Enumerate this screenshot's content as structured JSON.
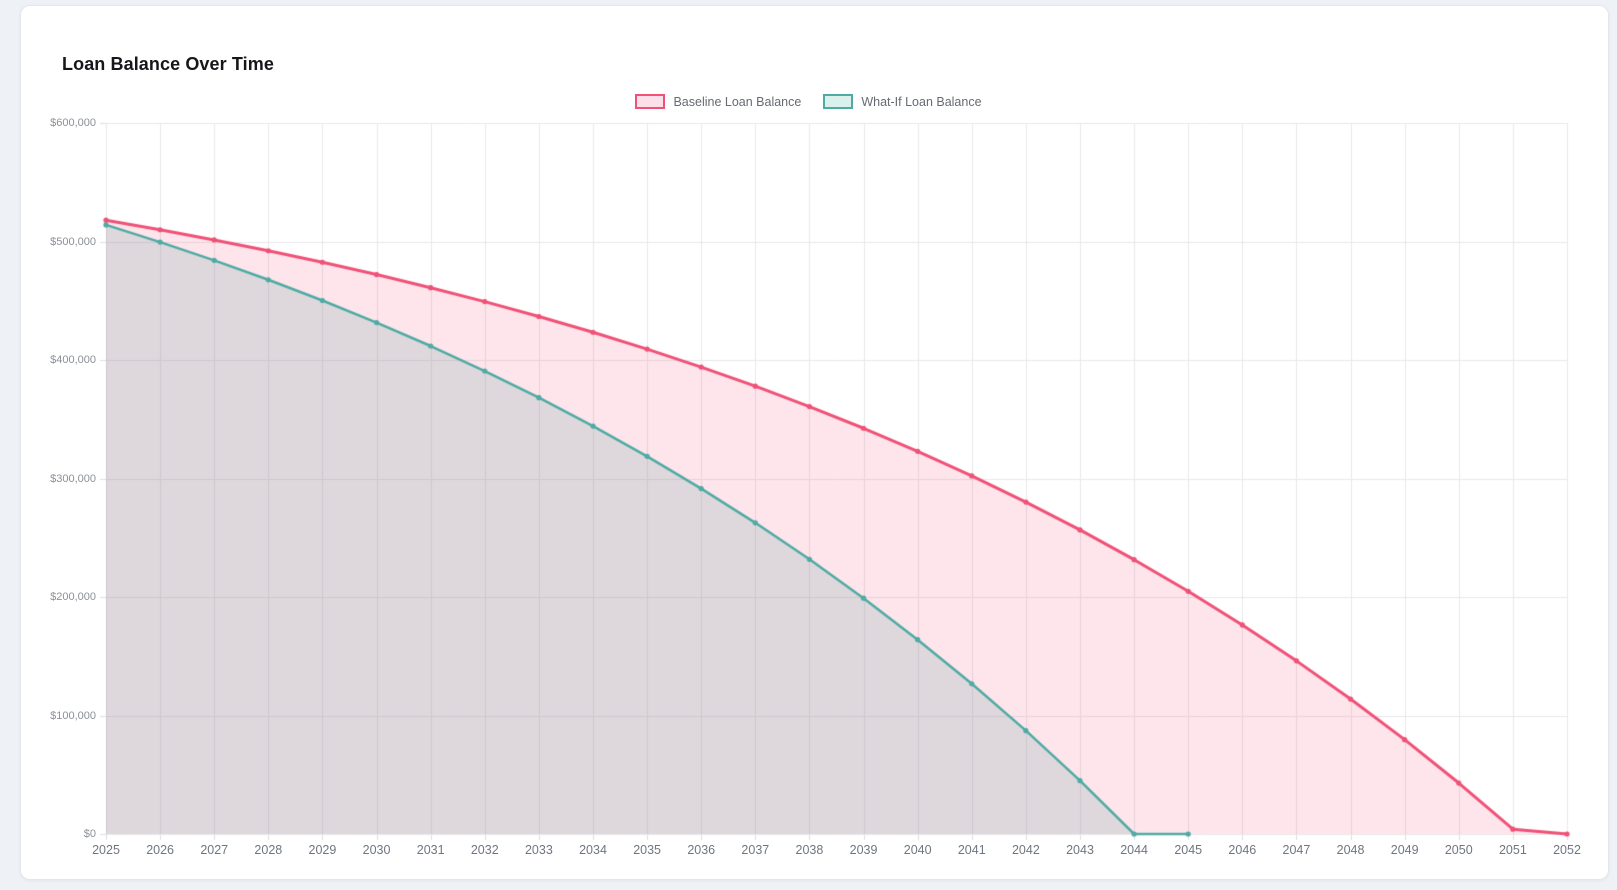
{
  "page": {
    "background": "#eef1f5"
  },
  "card": {
    "background": "#ffffff",
    "border": "#e3e7ed"
  },
  "chart_data": {
    "type": "line",
    "title": "Loan Balance Over Time",
    "xlabel": "",
    "ylabel": "",
    "ylim": [
      0,
      600000
    ],
    "grid": true,
    "legend_position": "top",
    "x_labels": [
      "2025",
      "2026",
      "2027",
      "2028",
      "2029",
      "2030",
      "2031",
      "2032",
      "2033",
      "2034",
      "2035",
      "2036",
      "2037",
      "2038",
      "2039",
      "2040",
      "2041",
      "2042",
      "2043",
      "2044",
      "2045",
      "2046",
      "2047",
      "2048",
      "2049",
      "2050",
      "2051",
      "2052"
    ],
    "y_ticks": [
      {
        "value": 600000,
        "label": "$600,000"
      },
      {
        "value": 500000,
        "label": "$500,000"
      },
      {
        "value": 400000,
        "label": "$400,000"
      },
      {
        "value": 300000,
        "label": "$300,000"
      },
      {
        "value": 200000,
        "label": "$200,000"
      },
      {
        "value": 100000,
        "label": "$100,000"
      },
      {
        "value": 0,
        "label": "$0"
      }
    ],
    "series": [
      {
        "name": "Baseline Loan Balance",
        "color": "#ef5177",
        "fill": "rgba(240,82,121,0.15)",
        "legend_fill": "#fcdfe8",
        "line_width": 3,
        "point_radius": 2.6,
        "values": [
          518000,
          509900,
          501300,
          492200,
          482500,
          472100,
          461000,
          449300,
          436700,
          423400,
          409200,
          394000,
          377900,
          360700,
          342400,
          322900,
          302200,
          280100,
          256600,
          231500,
          204800,
          176400,
          146100,
          113900,
          79600,
          43000,
          4100,
          0
        ]
      },
      {
        "name": "What-If Loan Balance",
        "color": "#4faaa3",
        "fill": "rgba(110,170,165,0.22)",
        "legend_fill": "#daf0ec",
        "line_width": 2.5,
        "point_radius": 2.6,
        "values": [
          514000,
          499500,
          484100,
          467700,
          450200,
          431600,
          411800,
          390700,
          368200,
          344200,
          318700,
          291500,
          262600,
          231800,
          199000,
          164000,
          126800,
          87200,
          45000,
          0,
          0,
          null,
          null,
          null,
          null,
          null,
          null,
          null
        ]
      }
    ],
    "axis": {
      "grid_color": "#e7e8ea",
      "tick_color": "#dcdee2",
      "y_label_color": "#8b9097",
      "x_label_color": "#6f7680"
    }
  }
}
